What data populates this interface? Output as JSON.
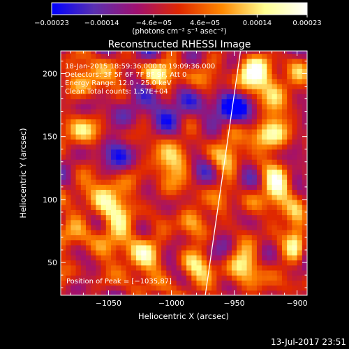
{
  "chart_data": {
    "type": "heatmap",
    "title": "Reconstructed RHESSI Image",
    "xlabel": "Heliocentric X (arcsec)",
    "ylabel": "Heliocentric Y (arcsec)",
    "xlim": [
      -1088,
      -892
    ],
    "ylim": [
      24,
      218
    ],
    "x_ticks": [
      -1050,
      -1000,
      -950,
      -900
    ],
    "x_tick_labels": [
      "−1050",
      "−1000",
      "−950",
      "−900"
    ],
    "y_ticks": [
      50,
      100,
      150,
      200
    ],
    "y_tick_labels": [
      "50",
      "100",
      "150",
      "200"
    ],
    "colorbar": {
      "range": [
        -0.00023,
        0.00023
      ],
      "tick_values": [
        -0.00023,
        -0.00014,
        -4.6e-05,
        4.6e-05,
        0.00014,
        0.00023
      ],
      "tick_labels": [
        "−0.00023",
        "−0.00014",
        "−4.6e−05",
        "4.6e−05",
        "0.00014",
        "0.00023"
      ],
      "unit_label": "(photons cm⁻² s⁻¹ asec⁻²)",
      "colors": [
        "#0000ff",
        "#5a30b0",
        "#a01070",
        "#e02800",
        "#ff8800",
        "#ffff90",
        "#ffffff"
      ]
    },
    "annotations": [
      "18-Jan-2015 18:59:36.000 to 19:09:36.000",
      "Detectors: 3F 5F 6F 7F 8F 9F, Att 0",
      "Energy Range: 12.0 - 25.0 keV",
      "Clean     Total counts: 1.57E+04"
    ],
    "peak_label": "Position of Peak = [−1035,87]",
    "peak": [
      -1035,
      87
    ],
    "limb_line": [
      [
        -973,
        24
      ],
      [
        -945,
        218
      ]
    ],
    "blobs": [
      {
        "x": -1040,
        "y": 87,
        "v": 0.0002,
        "sx": 11,
        "sy": 14
      },
      {
        "x": -1005,
        "y": 130,
        "v": 0.00023,
        "sx": 10,
        "sy": 9
      },
      {
        "x": -1052,
        "y": 110,
        "v": 0.00015,
        "sx": 8,
        "sy": 10
      },
      {
        "x": -1030,
        "y": 55,
        "v": 0.00016,
        "sx": 14,
        "sy": 12
      },
      {
        "x": -1070,
        "y": 75,
        "v": 0.00012,
        "sx": 9,
        "sy": 12
      },
      {
        "x": -1060,
        "y": 195,
        "v": 0.00014,
        "sx": 10,
        "sy": 10
      },
      {
        "x": -1075,
        "y": 155,
        "v": 0.00011,
        "sx": 8,
        "sy": 12
      },
      {
        "x": -985,
        "y": 80,
        "v": 0.00013,
        "sx": 8,
        "sy": 10
      },
      {
        "x": -975,
        "y": 45,
        "v": 0.00016,
        "sx": 10,
        "sy": 10
      },
      {
        "x": -955,
        "y": 135,
        "v": 0.00017,
        "sx": 10,
        "sy": 10
      },
      {
        "x": -935,
        "y": 200,
        "v": 0.00021,
        "sx": 12,
        "sy": 10
      },
      {
        "x": -918,
        "y": 175,
        "v": 0.00019,
        "sx": 8,
        "sy": 12
      },
      {
        "x": -915,
        "y": 110,
        "v": 0.0002,
        "sx": 8,
        "sy": 14
      },
      {
        "x": -900,
        "y": 70,
        "v": 0.00019,
        "sx": 6,
        "sy": 14
      },
      {
        "x": -940,
        "y": 50,
        "v": 0.00016,
        "sx": 10,
        "sy": 10
      },
      {
        "x": -930,
        "y": 150,
        "v": 0.00015,
        "sx": 8,
        "sy": 8
      },
      {
        "x": -1010,
        "y": 200,
        "v": 0.00012,
        "sx": 10,
        "sy": 8
      },
      {
        "x": -960,
        "y": 95,
        "v": 0.00013,
        "sx": 7,
        "sy": 9
      },
      {
        "x": -1000,
        "y": 165,
        "v": -0.00012,
        "sx": 14,
        "sy": 12
      },
      {
        "x": -950,
        "y": 170,
        "v": -0.00016,
        "sx": 10,
        "sy": 10
      },
      {
        "x": -1045,
        "y": 140,
        "v": -8e-05,
        "sx": 12,
        "sy": 10
      },
      {
        "x": -1020,
        "y": 95,
        "v": -6e-05,
        "sx": 10,
        "sy": 10
      }
    ],
    "noise_amp": 9e-05
  },
  "timestamp": "13-Jul-2017 23:51"
}
